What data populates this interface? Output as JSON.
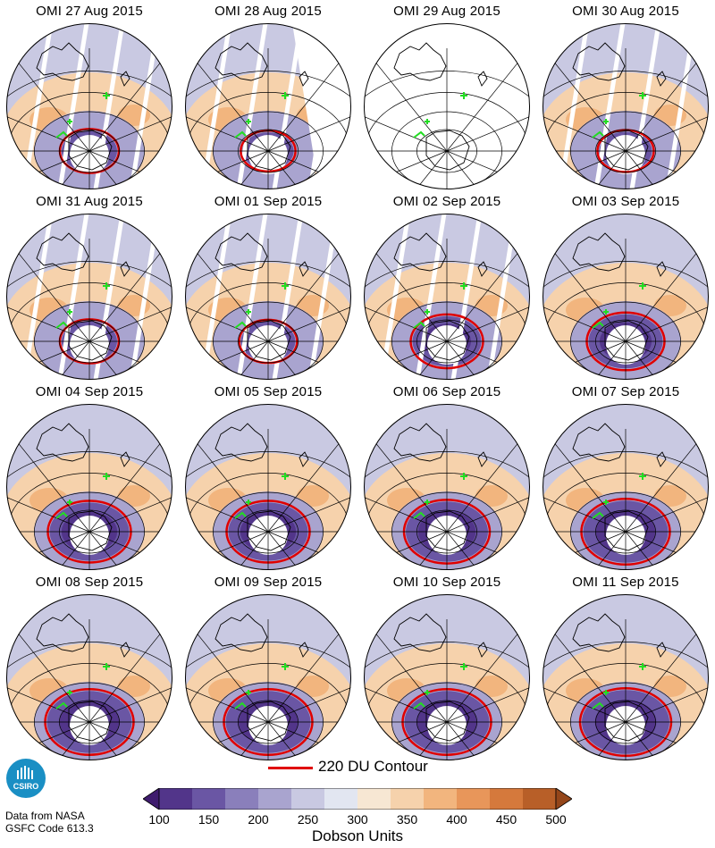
{
  "panels": [
    {
      "title": "OMI 27 Aug 2015",
      "status": "full",
      "hole": 0.3,
      "coverage": "partial"
    },
    {
      "title": "OMI 28 Aug 2015",
      "status": "partial",
      "hole": 0.22,
      "coverage": "partial"
    },
    {
      "title": "OMI 29 Aug 2015",
      "status": "missing",
      "hole": 0.0,
      "coverage": "partial"
    },
    {
      "title": "OMI 30 Aug 2015",
      "status": "full",
      "hole": 0.25,
      "coverage": "partial"
    },
    {
      "title": "OMI 31 Aug 2015",
      "status": "full",
      "hole": 0.3,
      "coverage": "partial"
    },
    {
      "title": "OMI 01 Sep 2015",
      "status": "full",
      "hole": 0.28,
      "coverage": "partial"
    },
    {
      "title": "OMI 02 Sep 2015",
      "status": "full",
      "hole": 0.55,
      "coverage": "partial"
    },
    {
      "title": "OMI 03 Sep 2015",
      "status": "full",
      "hole": 0.65,
      "coverage": "full"
    },
    {
      "title": "OMI 04 Sep 2015",
      "status": "full",
      "hole": 0.75,
      "coverage": "full"
    },
    {
      "title": "OMI 05 Sep 2015",
      "status": "full",
      "hole": 0.75,
      "coverage": "full"
    },
    {
      "title": "OMI 06 Sep 2015",
      "status": "full",
      "hole": 0.8,
      "coverage": "full"
    },
    {
      "title": "OMI 07 Sep 2015",
      "status": "full",
      "hole": 0.85,
      "coverage": "full"
    },
    {
      "title": "OMI 08 Sep 2015",
      "status": "full",
      "hole": 0.85,
      "coverage": "full"
    },
    {
      "title": "OMI 09 Sep 2015",
      "status": "full",
      "hole": 0.85,
      "coverage": "full"
    },
    {
      "title": "OMI 10 Sep 2015",
      "status": "full",
      "hole": 0.85,
      "coverage": "full"
    },
    {
      "title": "OMI 11 Sep 2015",
      "status": "full",
      "hole": 0.9,
      "coverage": "full"
    }
  ],
  "legend": {
    "label": "220 DU Contour",
    "color": "#e00000",
    "marker_color": "#22dd22"
  },
  "colorbar": {
    "title": "Dobson Units",
    "ticks": [
      "100",
      "150",
      "200",
      "250",
      "300",
      "350",
      "400",
      "450",
      "500"
    ],
    "colors": [
      "#3f1c6e",
      "#52358a",
      "#6a56a4",
      "#8a7fbb",
      "#a9a4cf",
      "#c9c9e2",
      "#e2e6f1",
      "#f7e7d3",
      "#f6d2ac",
      "#f2b57e",
      "#e8965a",
      "#d5793c",
      "#b85f28",
      "#94461a"
    ]
  },
  "logo": {
    "text": "CSIRO",
    "color": "#1a8fc4"
  },
  "credit": {
    "line1": "Data from NASA",
    "line2": "GSFC Code 613.3"
  }
}
